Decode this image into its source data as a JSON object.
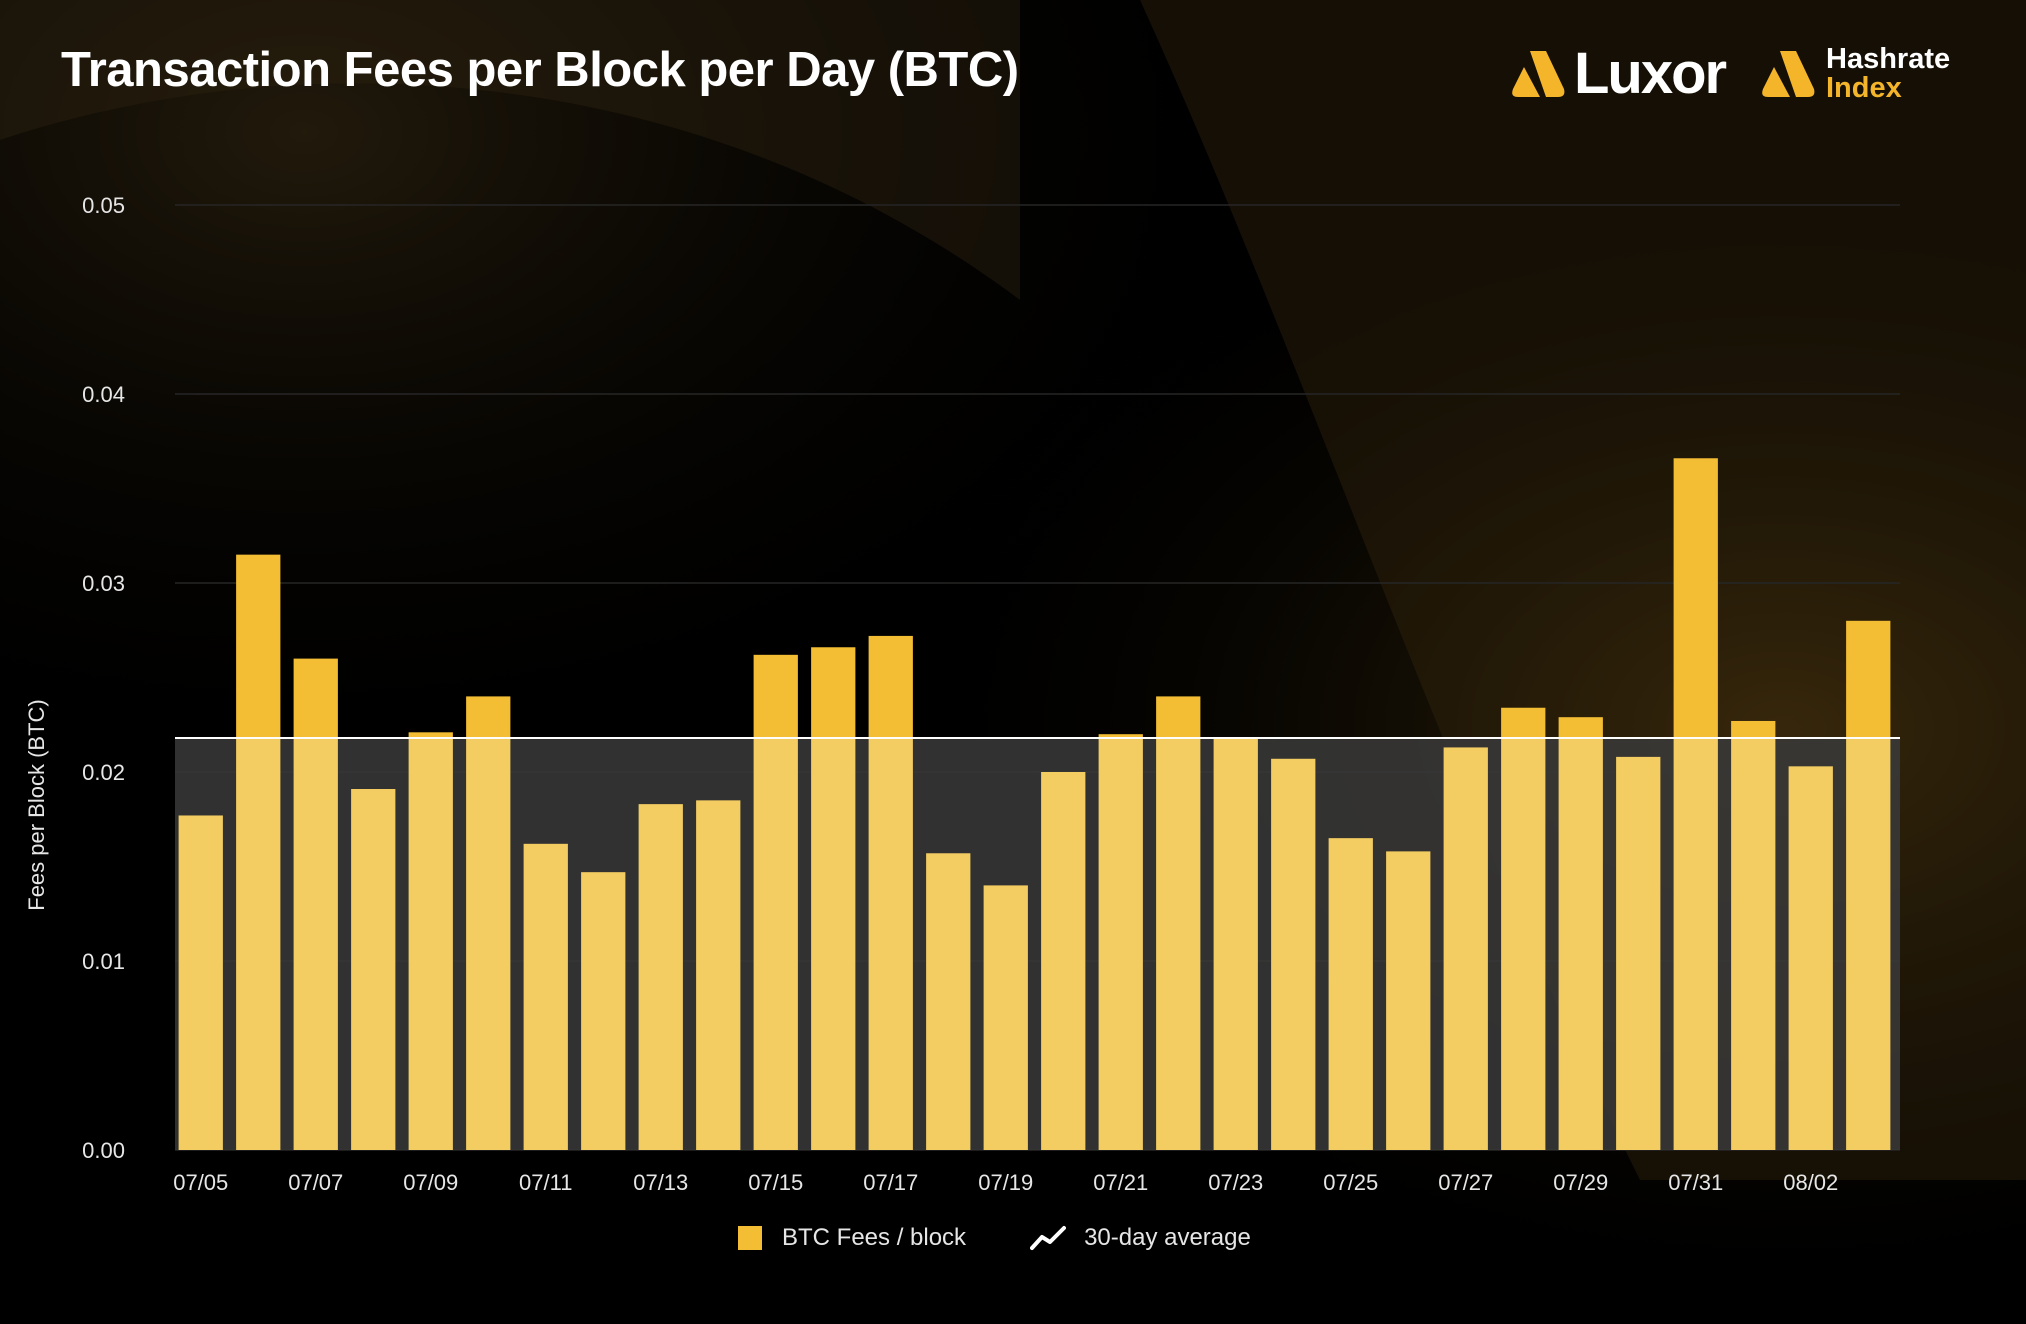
{
  "header": {
    "title": "Transaction Fees per Block per Day (BTC)",
    "brand_luxor": "Luxor",
    "brand_hri_top": "Hashrate",
    "brand_hri_bottom": "Index"
  },
  "colors": {
    "background": "#000000",
    "bar_above": "#f4be34",
    "bar_below": "#f4cd62",
    "average_band": "#3a3a3a",
    "average_line": "#ffffff",
    "grid": "#262626",
    "text": "#e6e6e6"
  },
  "legend": {
    "bars_label": "BTC Fees / block",
    "line_label": "30-day average",
    "line_icon": "trend-line-icon"
  },
  "chart_data": {
    "type": "bar",
    "title": "Transaction Fees per Block per Day (BTC)",
    "xlabel": "",
    "ylabel": "Fees per Block (BTC)",
    "ylim": [
      0,
      0.05
    ],
    "yticks": [
      "0.00",
      "0.01",
      "0.02",
      "0.03",
      "0.04",
      "0.05"
    ],
    "grid": true,
    "legend_position": "bottom-center",
    "categories": [
      "07/05",
      "07/06",
      "07/07",
      "07/08",
      "07/09",
      "07/10",
      "07/11",
      "07/12",
      "07/13",
      "07/14",
      "07/15",
      "07/16",
      "07/17",
      "07/18",
      "07/19",
      "07/20",
      "07/21",
      "07/22",
      "07/23",
      "07/24",
      "07/25",
      "07/26",
      "07/27",
      "07/28",
      "07/29",
      "07/30",
      "07/31",
      "08/01",
      "08/02",
      "08/03"
    ],
    "xtick_labels": [
      "07/05",
      "07/07",
      "07/09",
      "07/11",
      "07/13",
      "07/15",
      "07/17",
      "07/19",
      "07/21",
      "07/23",
      "07/25",
      "07/27",
      "07/29",
      "07/31",
      "08/02"
    ],
    "series": [
      {
        "name": "BTC Fees / block",
        "type": "bar",
        "values": [
          0.0177,
          0.0315,
          0.026,
          0.0191,
          0.0221,
          0.024,
          0.0162,
          0.0147,
          0.0183,
          0.0185,
          0.0262,
          0.0266,
          0.0272,
          0.0157,
          0.014,
          0.02,
          0.022,
          0.024,
          0.0218,
          0.0207,
          0.0165,
          0.0158,
          0.0213,
          0.0234,
          0.0229,
          0.0208,
          0.0366,
          0.0227,
          0.0203,
          0.028
        ]
      },
      {
        "name": "30-day average",
        "type": "line",
        "value": 0.0218
      }
    ]
  }
}
